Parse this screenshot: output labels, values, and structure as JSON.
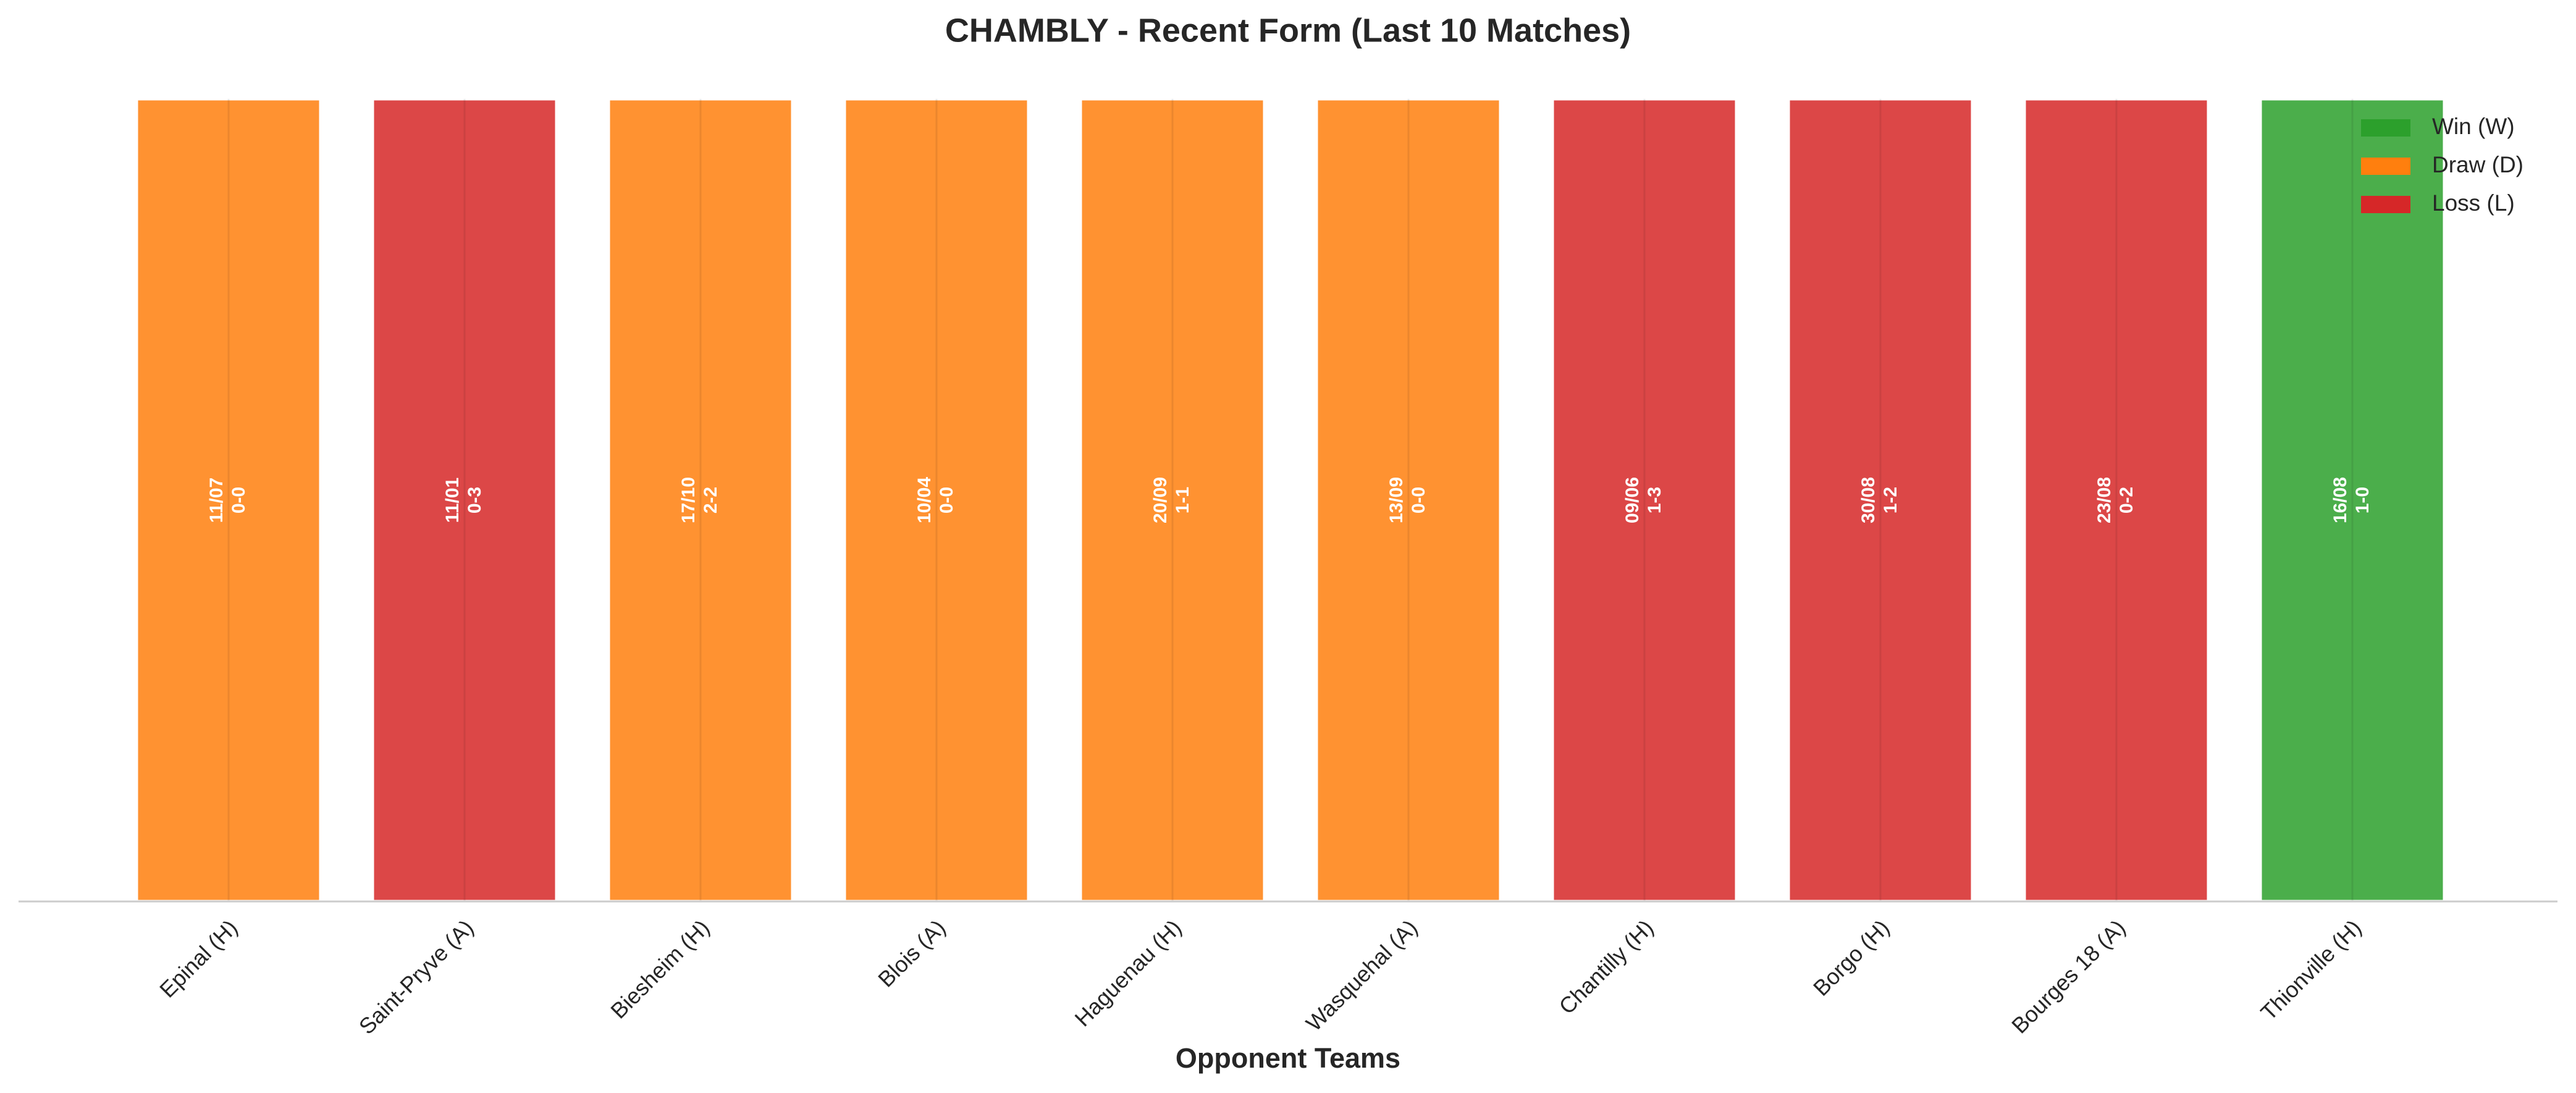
{
  "chart_data": {
    "type": "bar",
    "title": "CHAMBLY - Recent Form (Last 10 Matches)",
    "x_label": "Opponent Teams",
    "categories": [
      "Epinal (H)",
      "Saint-Pryve (A)",
      "Biesheim (H)",
      "Blois (A)",
      "Haguenau (H)",
      "Wasquehal (A)",
      "Chantilly (H)",
      "Borgo (H)",
      "Bourges 18 (A)",
      "Thionville (H)"
    ],
    "values": [
      1,
      1,
      1,
      1,
      1,
      1,
      1,
      1,
      1,
      1
    ],
    "dates": [
      "11/07",
      "11/01",
      "17/10",
      "10/04",
      "20/09",
      "13/09",
      "09/06",
      "30/08",
      "23/08",
      "16/08"
    ],
    "scores": [
      "0-0",
      "0-3",
      "2-2",
      "0-0",
      "1-1",
      "0-0",
      "1-3",
      "1-2",
      "0-2",
      "1-0"
    ],
    "colors": [
      "#ff7f0e",
      "#d62728",
      "#ff7f0e",
      "#ff7f0e",
      "#ff7f0e",
      "#ff7f0e",
      "#d62728",
      "#d62728",
      "#d62728",
      "#2ca02c"
    ],
    "ylim": [
      0,
      1
    ],
    "legend": {
      "position": "upper right",
      "entries": [
        {
          "name": "Win (W)",
          "color": "#2ca02c"
        },
        {
          "name": "Draw (D)",
          "color": "#ff7f0e"
        },
        {
          "name": "Loss (L)",
          "color": "#d62728"
        }
      ]
    }
  }
}
